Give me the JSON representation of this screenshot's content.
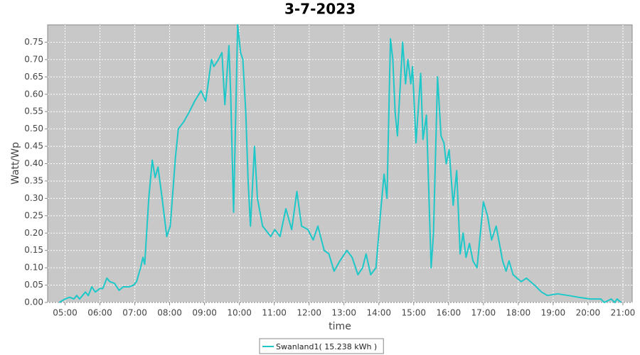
{
  "chart_data": {
    "type": "line",
    "title": "3-7-2023",
    "x_label": "time",
    "y_label": "Watt/Wp",
    "x": [
      "04:50",
      "05:00",
      "05:08",
      "05:15",
      "05:20",
      "05:25",
      "05:35",
      "05:40",
      "05:46",
      "05:52",
      "06:00",
      "06:05",
      "06:12",
      "06:17",
      "06:25",
      "06:33",
      "06:40",
      "06:50",
      "06:58",
      "07:03",
      "07:10",
      "07:14",
      "07:17",
      "07:24",
      "07:30",
      "07:35",
      "07:40",
      "07:47",
      "07:55",
      "08:01",
      "08:10",
      "08:15",
      "08:24",
      "08:34",
      "08:43",
      "08:54",
      "09:02",
      "09:12",
      "09:16",
      "09:24",
      "09:30",
      "09:35",
      "09:42",
      "09:45",
      "09:50",
      "09:57",
      "10:02",
      "10:06",
      "10:11",
      "10:15",
      "10:19",
      "10:26",
      "10:31",
      "10:40",
      "10:54",
      "11:01",
      "11:10",
      "11:20",
      "11:30",
      "11:39",
      "11:47",
      "11:58",
      "12:07",
      "12:15",
      "12:26",
      "12:34",
      "12:43",
      "12:53",
      "13:05",
      "13:14",
      "13:24",
      "13:32",
      "13:38",
      "13:46",
      "13:55",
      "14:03",
      "14:09",
      "14:14",
      "14:20",
      "14:24",
      "14:28",
      "14:32",
      "14:41",
      "14:46",
      "14:50",
      "14:55",
      "14:58",
      "15:04",
      "15:12",
      "15:16",
      "15:22",
      "15:30",
      "15:34",
      "15:41",
      "15:47",
      "15:52",
      "15:56",
      "16:01",
      "16:08",
      "16:14",
      "16:20",
      "16:25",
      "16:30",
      "16:36",
      "16:42",
      "16:49",
      "17:00",
      "17:07",
      "17:14",
      "17:22",
      "17:33",
      "17:39",
      "17:44",
      "17:51",
      "18:05",
      "18:14",
      "18:28",
      "18:40",
      "18:50",
      "19:08",
      "19:26",
      "19:44",
      "20:04",
      "20:22",
      "20:28",
      "20:40",
      "20:46",
      "20:50",
      "20:57"
    ],
    "series": [
      {
        "name": "Swanland1( 15.238 kWh )",
        "color": "#1ec8c8",
        "values": [
          0.0,
          0.01,
          0.015,
          0.01,
          0.02,
          0.01,
          0.03,
          0.02,
          0.045,
          0.03,
          0.04,
          0.04,
          0.07,
          0.06,
          0.055,
          0.035,
          0.045,
          0.045,
          0.05,
          0.06,
          0.1,
          0.13,
          0.11,
          0.3,
          0.41,
          0.36,
          0.39,
          0.3,
          0.19,
          0.22,
          0.42,
          0.5,
          0.52,
          0.55,
          0.58,
          0.61,
          0.58,
          0.7,
          0.68,
          0.7,
          0.72,
          0.57,
          0.74,
          0.6,
          0.26,
          0.8,
          0.72,
          0.7,
          0.55,
          0.35,
          0.22,
          0.45,
          0.3,
          0.22,
          0.19,
          0.21,
          0.19,
          0.27,
          0.21,
          0.32,
          0.22,
          0.21,
          0.18,
          0.22,
          0.15,
          0.14,
          0.09,
          0.12,
          0.15,
          0.13,
          0.08,
          0.1,
          0.14,
          0.08,
          0.1,
          0.26,
          0.37,
          0.3,
          0.76,
          0.7,
          0.55,
          0.48,
          0.75,
          0.63,
          0.7,
          0.63,
          0.68,
          0.46,
          0.66,
          0.47,
          0.54,
          0.1,
          0.2,
          0.65,
          0.48,
          0.46,
          0.4,
          0.44,
          0.28,
          0.38,
          0.14,
          0.2,
          0.13,
          0.17,
          0.12,
          0.1,
          0.29,
          0.25,
          0.18,
          0.22,
          0.12,
          0.09,
          0.12,
          0.08,
          0.06,
          0.07,
          0.05,
          0.03,
          0.02,
          0.025,
          0.02,
          0.015,
          0.01,
          0.01,
          0.0,
          0.01,
          0.0,
          0.01,
          0.0
        ]
      }
    ],
    "xlim": [
      "04:30",
      "21:16"
    ],
    "xticks": [
      "05:00",
      "06:00",
      "07:00",
      "08:00",
      "09:00",
      "10:00",
      "11:00",
      "12:00",
      "13:00",
      "14:00",
      "15:00",
      "16:00",
      "17:00",
      "18:00",
      "19:00",
      "20:00",
      "21:00"
    ],
    "ylim": [
      0,
      0.8
    ],
    "yticks": [
      {
        "value": 0,
        "label": "0.00"
      },
      {
        "value": 0.05,
        "label": "0.05"
      },
      {
        "value": 0.1,
        "label": "0.10"
      },
      {
        "value": 0.15,
        "label": "0.15"
      },
      {
        "value": 0.2,
        "label": "0.20"
      },
      {
        "value": 0.25,
        "label": "0.25"
      },
      {
        "value": 0.3,
        "label": "0.30"
      },
      {
        "value": 0.35,
        "label": "0.35"
      },
      {
        "value": 0.4,
        "label": "0.40"
      },
      {
        "value": 0.45,
        "label": "0.45"
      },
      {
        "value": 0.5,
        "label": "0.50"
      },
      {
        "value": 0.55,
        "label": "0.55"
      },
      {
        "value": 0.6,
        "label": "0.60"
      },
      {
        "value": 0.65,
        "label": "0.65"
      },
      {
        "value": 0.7,
        "label": "0.70"
      },
      {
        "value": 0.75,
        "label": "0.75"
      }
    ],
    "grid": true,
    "legend": "bottom"
  }
}
